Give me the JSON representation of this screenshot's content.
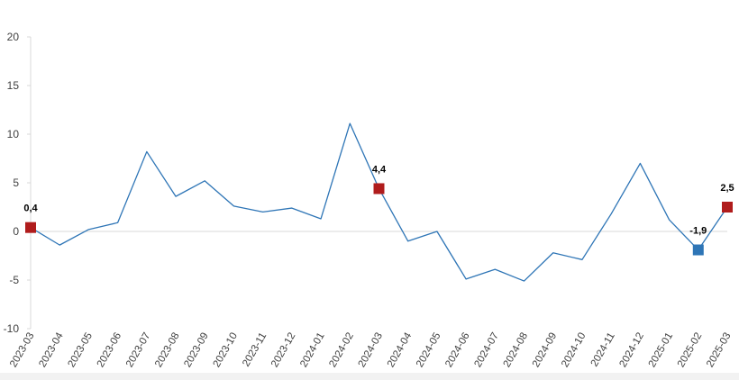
{
  "chart_data": {
    "type": "line",
    "title": "",
    "xlabel": "",
    "ylabel": "",
    "ylim": [
      -10,
      20
    ],
    "yticks": [
      -10,
      -5,
      0,
      5,
      10,
      15,
      20
    ],
    "ytick_labels": [
      "-10",
      "-5",
      "0",
      "5",
      "10",
      "15",
      "20"
    ],
    "grid": false,
    "categories": [
      "2023-03",
      "2023-04",
      "2023-05",
      "2023-06",
      "2023-07",
      "2023-08",
      "2023-09",
      "2023-10",
      "2023-11",
      "2023-12",
      "2024-01",
      "2024-02",
      "2024-03",
      "2024-04",
      "2024-05",
      "2024-06",
      "2024-07",
      "2024-08",
      "2024-09",
      "2024-10",
      "2024-11",
      "2024-12",
      "2025-01",
      "2025-02",
      "2025-03"
    ],
    "series": [
      {
        "values": [
          0.4,
          -1.4,
          0.2,
          0.9,
          8.2,
          3.6,
          5.2,
          2.6,
          2.0,
          2.4,
          1.3,
          11.1,
          4.4,
          -1.0,
          0.0,
          -4.9,
          -3.9,
          -5.1,
          -2.2,
          -2.9,
          1.8,
          7.0,
          1.2,
          -1.9,
          2.5
        ],
        "color": "#2E75B6"
      }
    ],
    "highlights": [
      {
        "category": "2023-03",
        "value": 0.4,
        "label": "0,4",
        "color": "#B01C1C"
      },
      {
        "category": "2024-03",
        "value": 4.4,
        "label": "4,4",
        "color": "#B01C1C"
      },
      {
        "category": "2025-02",
        "value": -1.9,
        "label": "-1,9",
        "color": "#2E75B6"
      },
      {
        "category": "2025-03",
        "value": 2.5,
        "label": "2,5",
        "color": "#B01C1C"
      }
    ],
    "axis_color": "#D9D9D9",
    "footer_color": "#F2F2F2"
  }
}
